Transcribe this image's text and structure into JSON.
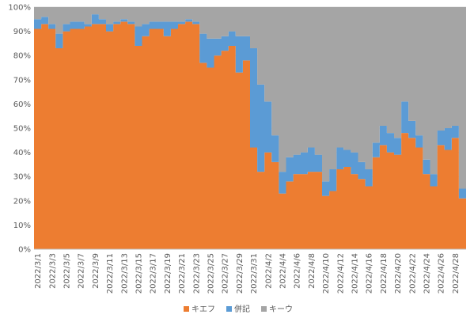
{
  "chart_data": {
    "type": "area",
    "stacked": true,
    "percent": true,
    "ylim": [
      0,
      100
    ],
    "yticks": [
      "0%",
      "10%",
      "20%",
      "30%",
      "40%",
      "50%",
      "60%",
      "70%",
      "80%",
      "90%",
      "100%"
    ],
    "x": [
      "2022/3/1",
      "2022/3/2",
      "2022/3/3",
      "2022/3/4",
      "2022/3/5",
      "2022/3/6",
      "2022/3/7",
      "2022/3/8",
      "2022/3/9",
      "2022/3/10",
      "2022/3/11",
      "2022/3/12",
      "2022/3/13",
      "2022/3/14",
      "2022/3/15",
      "2022/3/16",
      "2022/3/17",
      "2022/3/18",
      "2022/3/19",
      "2022/3/20",
      "2022/3/21",
      "2022/3/22",
      "2022/3/23",
      "2022/3/24",
      "2022/3/25",
      "2022/3/26",
      "2022/3/27",
      "2022/3/28",
      "2022/3/29",
      "2022/3/30",
      "2022/3/31",
      "2022/4/1",
      "2022/4/2",
      "2022/4/3",
      "2022/4/4",
      "2022/4/5",
      "2022/4/6",
      "2022/4/7",
      "2022/4/8",
      "2022/4/9",
      "2022/4/10",
      "2022/4/11",
      "2022/4/12",
      "2022/4/13",
      "2022/4/14",
      "2022/4/15",
      "2022/4/16",
      "2022/4/17",
      "2022/4/18",
      "2022/4/19",
      "2022/4/20",
      "2022/4/21",
      "2022/4/22",
      "2022/4/23",
      "2022/4/24",
      "2022/4/25",
      "2022/4/26",
      "2022/4/27",
      "2022/4/28",
      "2022/4/29"
    ],
    "xtick_labels": [
      "2022/3/1",
      "2022/3/3",
      "2022/3/5",
      "2022/3/7",
      "2022/3/9",
      "2022/3/11",
      "2022/3/13",
      "2022/3/15",
      "2022/3/17",
      "2022/3/19",
      "2022/3/21",
      "2022/3/23",
      "2022/3/25",
      "2022/3/27",
      "2022/3/29",
      "2022/3/31",
      "2022/4/2",
      "2022/4/4",
      "2022/4/6",
      "2022/4/8",
      "2022/4/10",
      "2022/4/12",
      "2022/4/14",
      "2022/4/16",
      "2022/4/18",
      "2022/4/20",
      "2022/4/22",
      "2022/4/24",
      "2022/4/26",
      "2022/4/28"
    ],
    "series": [
      {
        "name": "キエフ",
        "color": "#ED7D31",
        "values": [
          91,
          93,
          91,
          83,
          90,
          91,
          91,
          92,
          93,
          93,
          90,
          93,
          94,
          93,
          84,
          88,
          91,
          91,
          88,
          91,
          93,
          94,
          93,
          77,
          75,
          80,
          82,
          84,
          73,
          78,
          42,
          32,
          40,
          36,
          23,
          28,
          31,
          31,
          32,
          32,
          22,
          24,
          33,
          34,
          31,
          29,
          26,
          38,
          43,
          40,
          39,
          48,
          46,
          42,
          31,
          26,
          43,
          41,
          46,
          21
        ]
      },
      {
        "name": "併記",
        "color": "#5B9BD5",
        "values": [
          4,
          3,
          2,
          6,
          3,
          3,
          3,
          1,
          4,
          2,
          3,
          1,
          1,
          1,
          8,
          5,
          3,
          3,
          6,
          3,
          1,
          1,
          1,
          12,
          12,
          7,
          6,
          6,
          15,
          10,
          41,
          36,
          21,
          11,
          9,
          10,
          8,
          9,
          10,
          7,
          6,
          9,
          9,
          7,
          9,
          7,
          7,
          6,
          8,
          8,
          7,
          13,
          7,
          5,
          6,
          5,
          6,
          9,
          5,
          4
        ]
      },
      {
        "name": "キーウ",
        "color": "#A5A5A5",
        "values": [
          5,
          4,
          7,
          11,
          7,
          6,
          6,
          7,
          3,
          5,
          7,
          6,
          5,
          6,
          8,
          7,
          6,
          6,
          6,
          6,
          6,
          5,
          6,
          11,
          13,
          13,
          12,
          10,
          12,
          12,
          17,
          32,
          39,
          53,
          68,
          62,
          61,
          60,
          58,
          61,
          72,
          67,
          58,
          59,
          60,
          64,
          67,
          56,
          49,
          52,
          54,
          39,
          47,
          53,
          63,
          69,
          51,
          50,
          49,
          75
        ]
      }
    ]
  }
}
